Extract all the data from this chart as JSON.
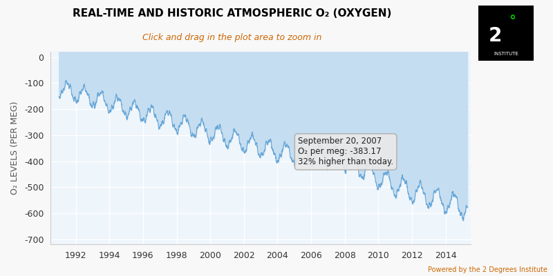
{
  "title": "REAL-TIME AND HISTORIC ATMOSPHERIC O₂ (OXYGEN)",
  "subtitle": "Click and drag in the plot area to zoom in",
  "ylabel": "O₂ LEVELS (PER MEG)",
  "xlabel_years": [
    1992,
    1994,
    1996,
    1998,
    2000,
    2002,
    2004,
    2006,
    2008,
    2010,
    2012,
    2014
  ],
  "yticks": [
    0,
    -100,
    -200,
    -300,
    -400,
    -500,
    -600,
    -700
  ],
  "ylim": [
    -720,
    20
  ],
  "xlim_start": 1990.5,
  "xlim_end": 2015.5,
  "area_fill_color": "#c5ddf0",
  "line_color": "#5a9fd4",
  "background_color": "#eef5fb",
  "grid_color": "#ffffff",
  "title_color": "#000000",
  "subtitle_color": "#cc6600",
  "ylabel_color": "#555555",
  "tooltip_date": "September 20, 2007",
  "tooltip_value": "O₂ per meg: -383.17",
  "tooltip_extra": "32% higher than today.",
  "tooltip_x": 2007.72,
  "tooltip_y": -383.17,
  "watermark": "Powered by the 2 Degrees Institute",
  "watermark_color": "#cc6600"
}
